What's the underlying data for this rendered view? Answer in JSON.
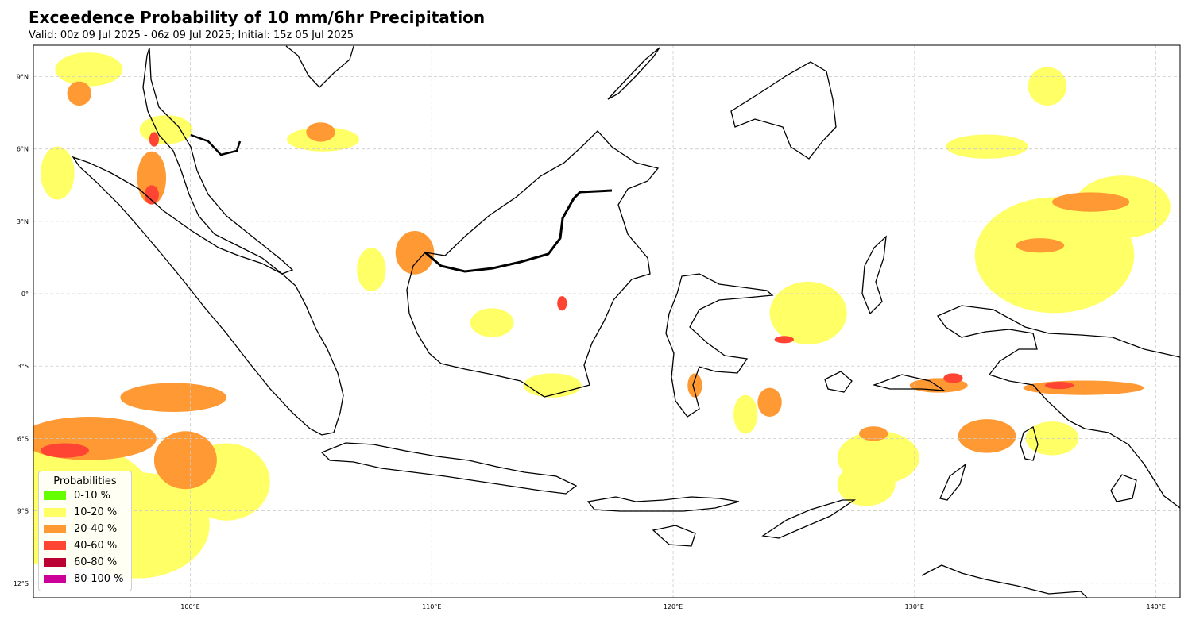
{
  "header": {
    "title": "Exceedence Probability of 10 mm/6hr Precipitation",
    "subtitle": "Valid: 00z 09 Jul 2025 - 06z 09 Jul 2025; Initial: 15z 05 Jul 2025"
  },
  "map": {
    "region": "Indonesia",
    "lon_range": [
      93.5,
      141
    ],
    "lat_range": [
      -12.6,
      10.3
    ],
    "gridlines": true,
    "lon_ticks": [
      {
        "value": 100,
        "label": "100°E"
      },
      {
        "value": 110,
        "label": "110°E"
      },
      {
        "value": 120,
        "label": "120°E"
      },
      {
        "value": 130,
        "label": "130°E"
      },
      {
        "value": 140,
        "label": "140°E"
      }
    ],
    "lat_ticks": [
      {
        "value": 9,
        "label": "9°N"
      },
      {
        "value": 6,
        "label": "6°N"
      },
      {
        "value": 3,
        "label": "3°N"
      },
      {
        "value": 0,
        "label": "0°"
      },
      {
        "value": -3,
        "label": "3°S"
      },
      {
        "value": -6,
        "label": "6°S"
      },
      {
        "value": -9,
        "label": "9°S"
      },
      {
        "value": -12,
        "label": "12°S"
      }
    ],
    "layers": {
      "p10_20": [
        {
          "lon": 95.0,
          "lat": -8.8,
          "rlon": 3.6,
          "rlat": 2.6
        },
        {
          "lon": 97.8,
          "lat": -9.6,
          "rlon": 3.0,
          "rlat": 2.2
        },
        {
          "lon": 101.5,
          "lat": -7.8,
          "rlon": 1.8,
          "rlat": 1.6
        },
        {
          "lon": 95.8,
          "lat": 9.3,
          "rlon": 1.4,
          "rlat": 0.7
        },
        {
          "lon": 99.0,
          "lat": 6.8,
          "rlon": 1.1,
          "rlat": 0.6
        },
        {
          "lon": 94.5,
          "lat": 5.0,
          "rlon": 0.7,
          "rlat": 1.1
        },
        {
          "lon": 105.5,
          "lat": 6.4,
          "rlon": 1.5,
          "rlat": 0.5
        },
        {
          "lon": 125.6,
          "lat": -0.8,
          "rlon": 1.6,
          "rlat": 1.3
        },
        {
          "lon": 135.8,
          "lat": 1.6,
          "rlon": 3.3,
          "rlat": 2.4
        },
        {
          "lon": 138.6,
          "lat": 3.6,
          "rlon": 2.0,
          "rlat": 1.3
        },
        {
          "lon": 133.0,
          "lat": 6.1,
          "rlon": 1.7,
          "rlat": 0.5
        },
        {
          "lon": 135.5,
          "lat": 8.6,
          "rlon": 0.8,
          "rlat": 0.8
        },
        {
          "lon": 128.5,
          "lat": -6.8,
          "rlon": 1.7,
          "rlat": 1.1
        },
        {
          "lon": 128.0,
          "lat": -7.9,
          "rlon": 1.2,
          "rlat": 0.9
        },
        {
          "lon": 115.0,
          "lat": -3.8,
          "rlon": 1.2,
          "rlat": 0.5
        },
        {
          "lon": 112.5,
          "lat": -1.2,
          "rlon": 0.9,
          "rlat": 0.6
        },
        {
          "lon": 107.5,
          "lat": 1.0,
          "rlon": 0.6,
          "rlat": 0.9
        },
        {
          "lon": 123.0,
          "lat": -5.0,
          "rlon": 0.5,
          "rlat": 0.8
        },
        {
          "lon": 135.7,
          "lat": -6.0,
          "rlon": 1.1,
          "rlat": 0.7
        }
      ],
      "p20_40": [
        {
          "lon": 95.8,
          "lat": -6.0,
          "rlon": 2.8,
          "rlat": 0.9
        },
        {
          "lon": 99.3,
          "lat": -4.3,
          "rlon": 2.2,
          "rlat": 0.6
        },
        {
          "lon": 99.8,
          "lat": -6.9,
          "rlon": 1.3,
          "rlat": 1.2
        },
        {
          "lon": 109.3,
          "lat": 1.7,
          "rlon": 0.8,
          "rlat": 0.9
        },
        {
          "lon": 105.4,
          "lat": 6.7,
          "rlon": 0.6,
          "rlat": 0.4
        },
        {
          "lon": 98.4,
          "lat": 4.8,
          "rlon": 0.6,
          "rlat": 1.1
        },
        {
          "lon": 95.4,
          "lat": 8.3,
          "rlon": 0.5,
          "rlat": 0.5
        },
        {
          "lon": 133.0,
          "lat": -5.9,
          "rlon": 1.2,
          "rlat": 0.7
        },
        {
          "lon": 137.3,
          "lat": 3.8,
          "rlon": 1.6,
          "rlat": 0.4
        },
        {
          "lon": 135.2,
          "lat": 2.0,
          "rlon": 1.0,
          "rlat": 0.3
        },
        {
          "lon": 137.0,
          "lat": -3.9,
          "rlon": 2.5,
          "rlat": 0.3
        },
        {
          "lon": 131.0,
          "lat": -3.8,
          "rlon": 1.2,
          "rlat": 0.3
        },
        {
          "lon": 128.3,
          "lat": -5.8,
          "rlon": 0.6,
          "rlat": 0.3
        },
        {
          "lon": 124.0,
          "lat": -4.5,
          "rlon": 0.5,
          "rlat": 0.6
        },
        {
          "lon": 120.9,
          "lat": -3.8,
          "rlon": 0.3,
          "rlat": 0.5
        }
      ],
      "p40_60": [
        {
          "lon": 94.8,
          "lat": -6.5,
          "rlon": 1.0,
          "rlat": 0.3
        },
        {
          "lon": 98.4,
          "lat": 4.1,
          "rlon": 0.3,
          "rlat": 0.4
        },
        {
          "lon": 98.5,
          "lat": 6.4,
          "rlon": 0.2,
          "rlat": 0.3
        },
        {
          "lon": 131.6,
          "lat": -3.5,
          "rlon": 0.4,
          "rlat": 0.2
        },
        {
          "lon": 136.0,
          "lat": -3.8,
          "rlon": 0.6,
          "rlat": 0.15
        },
        {
          "lon": 115.4,
          "lat": -0.4,
          "rlon": 0.2,
          "rlat": 0.3
        },
        {
          "lon": 124.6,
          "lat": -1.9,
          "rlon": 0.4,
          "rlat": 0.15
        }
      ]
    },
    "colors": {
      "p0_10": "#66ff00",
      "p10_20": "#ffff66",
      "p20_40": "#ff9933",
      "p40_60": "#ff4433",
      "p60_80": "#bb0033",
      "p80_100": "#cc0099",
      "coast": "#000000",
      "grid": "#cccccc"
    }
  },
  "legend": {
    "title": "Probabilities",
    "items": [
      {
        "label": "0-10 %",
        "color": "#66ff00"
      },
      {
        "label": "10-20 %",
        "color": "#ffff66"
      },
      {
        "label": "20-40 %",
        "color": "#ff9933"
      },
      {
        "label": "40-60 %",
        "color": "#ff4433"
      },
      {
        "label": "60-80 %",
        "color": "#bb0033"
      },
      {
        "label": "80-100 %",
        "color": "#cc0099"
      }
    ]
  }
}
